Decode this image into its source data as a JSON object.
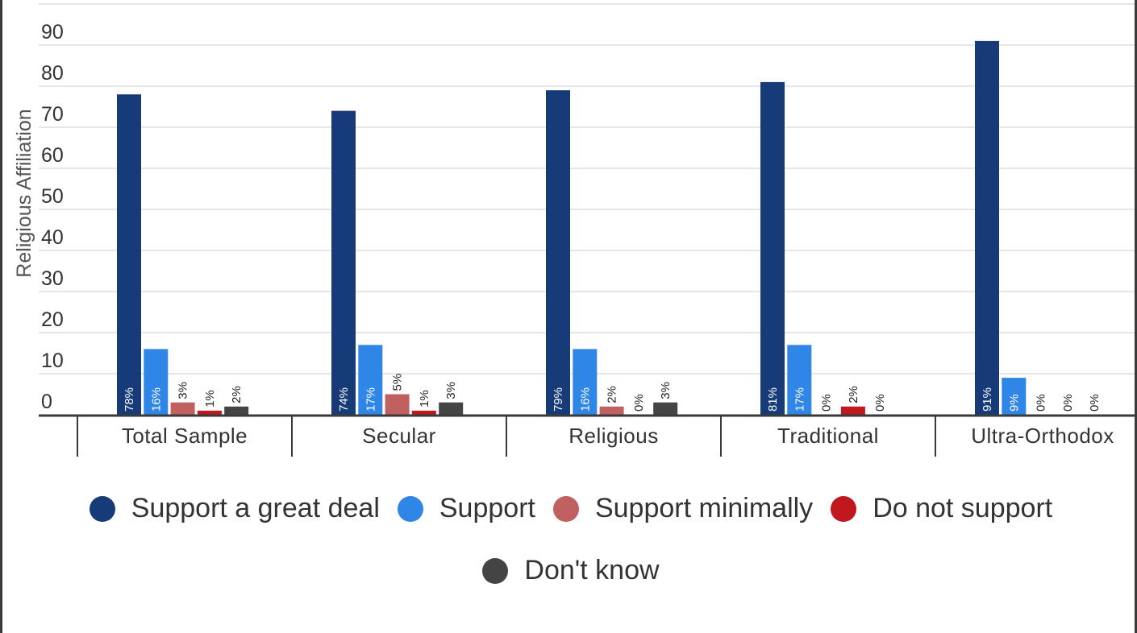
{
  "chart_data": {
    "type": "bar",
    "ylabel": "Religious Affiliation",
    "xlabel": "",
    "ylim": [
      0,
      100
    ],
    "yticks": [
      0,
      10,
      20,
      30,
      40,
      50,
      60,
      70,
      80,
      90
    ],
    "grid": true,
    "legend_position": "bottom",
    "categories": [
      "Total Sample",
      "Secular",
      "Religious",
      "Traditional",
      "Ultra-Orthodox"
    ],
    "series": [
      {
        "name": "Support a great deal",
        "color": "#173a78",
        "values": [
          78,
          74,
          79,
          81,
          91
        ],
        "labels": [
          "78%",
          "74%",
          "79%",
          "81%",
          "91%"
        ]
      },
      {
        "name": "Support",
        "color": "#2f86e6",
        "values": [
          16,
          17,
          16,
          17,
          9
        ],
        "labels": [
          "16%",
          "17%",
          "16%",
          "17%",
          "9%"
        ]
      },
      {
        "name": "Support minimally",
        "color": "#c06060",
        "values": [
          3,
          5,
          2,
          0,
          0
        ],
        "labels": [
          "3%",
          "5%",
          "2%",
          "0%",
          "0%"
        ]
      },
      {
        "name": "Do not support",
        "color": "#c0181e",
        "values": [
          1,
          1,
          0,
          2,
          0
        ],
        "labels": [
          "1%",
          "1%",
          "0%",
          "2%",
          "0%"
        ]
      },
      {
        "name": "Don't know",
        "color": "#444444",
        "values": [
          2,
          3,
          3,
          0,
          0
        ],
        "labels": [
          "2%",
          "3%",
          "3%",
          "0%",
          "0%"
        ]
      }
    ]
  }
}
